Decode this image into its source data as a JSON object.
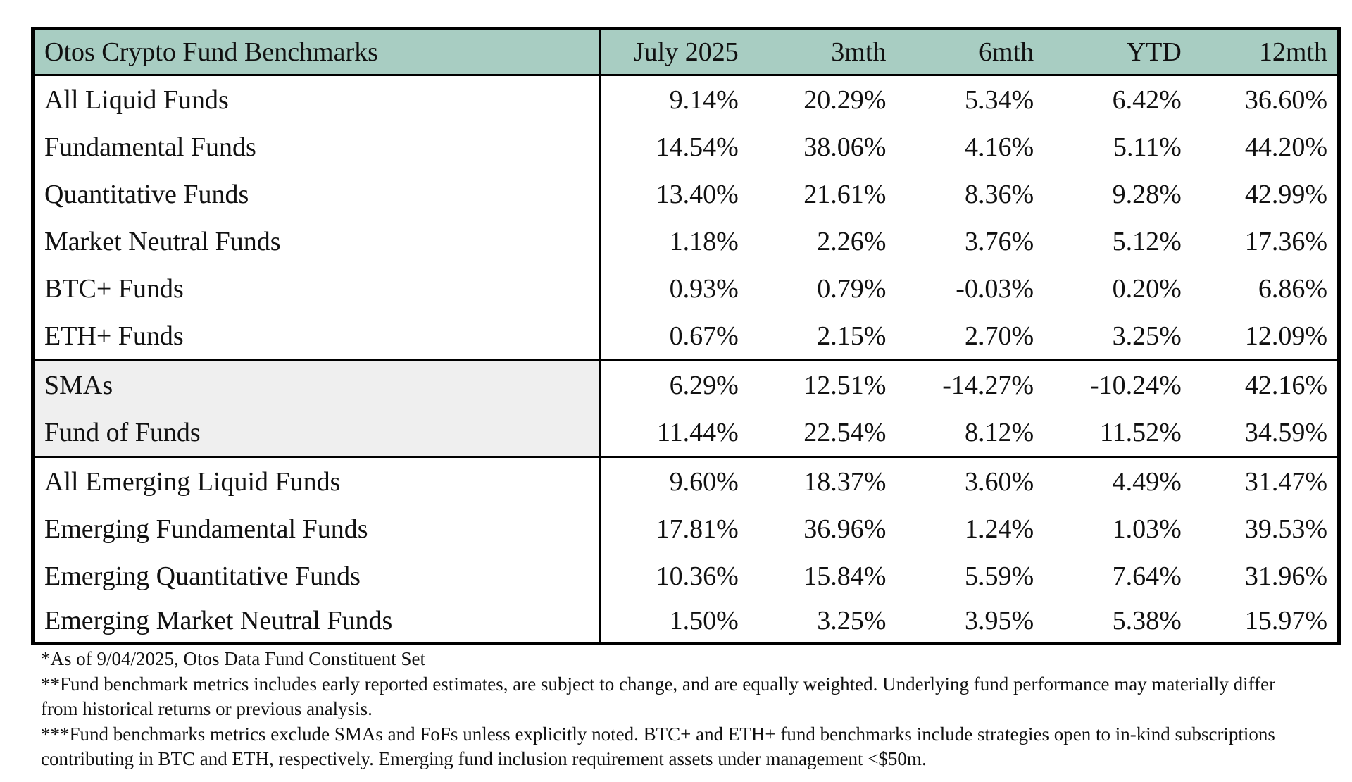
{
  "table": {
    "title": "Otos Crypto Fund Benchmarks",
    "columns": [
      "July 2025",
      "3mth",
      "6mth",
      "YTD",
      "12mth"
    ],
    "groups": [
      {
        "shaded": false,
        "rows": [
          {
            "label": "All Liquid Funds",
            "values": [
              "9.14%",
              "20.29%",
              "5.34%",
              "6.42%",
              "36.60%"
            ]
          },
          {
            "label": "Fundamental Funds",
            "values": [
              "14.54%",
              "38.06%",
              "4.16%",
              "5.11%",
              "44.20%"
            ]
          },
          {
            "label": "Quantitative Funds",
            "values": [
              "13.40%",
              "21.61%",
              "8.36%",
              "9.28%",
              "42.99%"
            ]
          },
          {
            "label": "Market Neutral Funds",
            "values": [
              "1.18%",
              "2.26%",
              "3.76%",
              "5.12%",
              "17.36%"
            ]
          },
          {
            "label": "BTC+ Funds",
            "values": [
              "0.93%",
              "0.79%",
              "-0.03%",
              "0.20%",
              "6.86%"
            ]
          },
          {
            "label": "ETH+ Funds",
            "values": [
              "0.67%",
              "2.15%",
              "2.70%",
              "3.25%",
              "12.09%"
            ]
          }
        ]
      },
      {
        "shaded": true,
        "rows": [
          {
            "label": "SMAs",
            "values": [
              "6.29%",
              "12.51%",
              "-14.27%",
              "-10.24%",
              "42.16%"
            ]
          },
          {
            "label": "Fund of Funds",
            "values": [
              "11.44%",
              "22.54%",
              "8.12%",
              "11.52%",
              "34.59%"
            ]
          }
        ]
      },
      {
        "shaded": false,
        "rows": [
          {
            "label": "All Emerging Liquid Funds",
            "values": [
              "9.60%",
              "18.37%",
              "3.60%",
              "4.49%",
              "31.47%"
            ]
          },
          {
            "label": "Emerging Fundamental Funds",
            "values": [
              "17.81%",
              "36.96%",
              "1.24%",
              "1.03%",
              "39.53%"
            ]
          },
          {
            "label": "Emerging Quantitative Funds",
            "values": [
              "10.36%",
              "15.84%",
              "5.59%",
              "7.64%",
              "31.96%"
            ]
          },
          {
            "label": "Emerging Market Neutral Funds",
            "values": [
              "1.50%",
              "3.25%",
              "3.95%",
              "5.38%",
              "15.97%"
            ]
          }
        ]
      }
    ]
  },
  "colors": {
    "header_bg": "#a8cdc2",
    "shaded_bg": "#efefef",
    "border": "#000000"
  },
  "footnotes": [
    "*As of 9/04/2025, Otos Data Fund Constituent Set",
    "**Fund benchmark metrics includes early reported estimates, are subject to change, and are equally weighted. Underlying fund performance may materially differ from historical returns or previous analysis.",
    "***Fund benchmarks metrics exclude SMAs and FoFs unless explicitly noted. BTC+ and ETH+ fund benchmarks include strategies open to in-kind subscriptions contributing in BTC and ETH, respectively. Emerging fund inclusion requirement assets under management <$50m."
  ]
}
